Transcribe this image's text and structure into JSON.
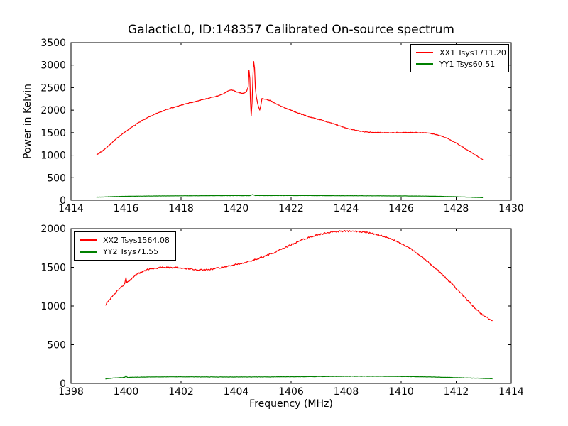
{
  "figure": {
    "title": "GalacticL0, ID:148357 Calibrated On-source spectrum",
    "background": "#ffffff",
    "axis_color": "#000000"
  },
  "chart_data": [
    {
      "type": "line",
      "xlabel": "",
      "ylabel": "Power in Kelvin",
      "xlim": [
        1414,
        1430
      ],
      "ylim": [
        0,
        3500
      ],
      "xticks": [
        1414,
        1416,
        1418,
        1420,
        1422,
        1424,
        1426,
        1428,
        1430
      ],
      "yticks": [
        0,
        500,
        1000,
        1500,
        2000,
        2500,
        3000,
        3500
      ],
      "grid": false,
      "legend_position": "upper right",
      "series": [
        {
          "id": "xx1",
          "name": "XX1 Tsys1711.20",
          "color": "#ff0000",
          "noise": 9,
          "points": [
            [
              1414.92,
              1000
            ],
            [
              1415.05,
              1055
            ],
            [
              1415.2,
              1120
            ],
            [
              1415.4,
              1230
            ],
            [
              1415.6,
              1340
            ],
            [
              1415.8,
              1440
            ],
            [
              1416.0,
              1530
            ],
            [
              1416.2,
              1620
            ],
            [
              1416.4,
              1700
            ],
            [
              1416.6,
              1775
            ],
            [
              1416.8,
              1840
            ],
            [
              1417.0,
              1900
            ],
            [
              1417.2,
              1950
            ],
            [
              1417.4,
              1995
            ],
            [
              1417.6,
              2040
            ],
            [
              1417.8,
              2075
            ],
            [
              1418.0,
              2110
            ],
            [
              1418.2,
              2145
            ],
            [
              1418.4,
              2175
            ],
            [
              1418.6,
              2205
            ],
            [
              1418.8,
              2235
            ],
            [
              1419.0,
              2265
            ],
            [
              1419.2,
              2295
            ],
            [
              1419.35,
              2320
            ],
            [
              1419.5,
              2350
            ],
            [
              1419.6,
              2385
            ],
            [
              1419.7,
              2425
            ],
            [
              1419.8,
              2445
            ],
            [
              1419.9,
              2440
            ],
            [
              1420.0,
              2410
            ],
            [
              1420.1,
              2390
            ],
            [
              1420.2,
              2375
            ],
            [
              1420.3,
              2380
            ],
            [
              1420.38,
              2410
            ],
            [
              1420.44,
              2520
            ],
            [
              1420.47,
              2890
            ],
            [
              1420.5,
              2700
            ],
            [
              1420.52,
              2250
            ],
            [
              1420.55,
              1870
            ],
            [
              1420.58,
              2150
            ],
            [
              1420.61,
              2700
            ],
            [
              1420.64,
              3080
            ],
            [
              1420.67,
              2950
            ],
            [
              1420.7,
              2500
            ],
            [
              1420.74,
              2280
            ],
            [
              1420.78,
              2160
            ],
            [
              1420.82,
              2070
            ],
            [
              1420.86,
              2000
            ],
            [
              1420.9,
              2110
            ],
            [
              1420.94,
              2260
            ],
            [
              1421.0,
              2250
            ],
            [
              1421.1,
              2240
            ],
            [
              1421.25,
              2210
            ],
            [
              1421.4,
              2160
            ],
            [
              1421.6,
              2100
            ],
            [
              1421.8,
              2045
            ],
            [
              1422.0,
              1995
            ],
            [
              1422.2,
              1950
            ],
            [
              1422.4,
              1905
            ],
            [
              1422.6,
              1865
            ],
            [
              1422.8,
              1830
            ],
            [
              1423.0,
              1795
            ],
            [
              1423.2,
              1760
            ],
            [
              1423.4,
              1725
            ],
            [
              1423.6,
              1685
            ],
            [
              1423.8,
              1645
            ],
            [
              1424.0,
              1605
            ],
            [
              1424.2,
              1570
            ],
            [
              1424.4,
              1545
            ],
            [
              1424.6,
              1525
            ],
            [
              1424.8,
              1512
            ],
            [
              1425.0,
              1505
            ],
            [
              1425.3,
              1500
            ],
            [
              1425.6,
              1498
            ],
            [
              1425.9,
              1500
            ],
            [
              1426.2,
              1503
            ],
            [
              1426.5,
              1505
            ],
            [
              1426.8,
              1500
            ],
            [
              1427.0,
              1490
            ],
            [
              1427.2,
              1470
            ],
            [
              1427.4,
              1435
            ],
            [
              1427.6,
              1390
            ],
            [
              1427.8,
              1335
            ],
            [
              1428.0,
              1270
            ],
            [
              1428.2,
              1195
            ],
            [
              1428.4,
              1120
            ],
            [
              1428.6,
              1040
            ],
            [
              1428.8,
              960
            ],
            [
              1428.97,
              895
            ]
          ]
        },
        {
          "id": "yy1",
          "name": "YY1 Tsys60.51",
          "color": "#008000",
          "noise": 2,
          "points": [
            [
              1414.92,
              68
            ],
            [
              1415.5,
              80
            ],
            [
              1416,
              87
            ],
            [
              1417,
              94
            ],
            [
              1418,
              98
            ],
            [
              1419,
              101
            ],
            [
              1420,
              103
            ],
            [
              1420.5,
              101
            ],
            [
              1420.6,
              125
            ],
            [
              1420.7,
              103
            ],
            [
              1421,
              104
            ],
            [
              1422,
              104
            ],
            [
              1423,
              102
            ],
            [
              1424,
              100
            ],
            [
              1425,
              98
            ],
            [
              1426,
              95
            ],
            [
              1426.8,
              92
            ],
            [
              1427.4,
              86
            ],
            [
              1428,
              78
            ],
            [
              1428.5,
              68
            ],
            [
              1428.97,
              57
            ]
          ]
        }
      ]
    },
    {
      "type": "line",
      "xlabel": "Frequency (MHz)",
      "ylabel": "",
      "xlim": [
        1398,
        1414
      ],
      "ylim": [
        0,
        2000
      ],
      "xticks": [
        1398,
        1400,
        1402,
        1404,
        1406,
        1408,
        1410,
        1412,
        1414
      ],
      "yticks": [
        0,
        500,
        1000,
        1500,
        2000
      ],
      "grid": false,
      "legend_position": "upper left",
      "series": [
        {
          "id": "xx2",
          "name": "XX2 Tsys1564.08",
          "color": "#ff0000",
          "noise": 10,
          "points": [
            [
              1399.25,
              1010
            ],
            [
              1399.4,
              1080
            ],
            [
              1399.55,
              1145
            ],
            [
              1399.7,
              1205
            ],
            [
              1399.85,
              1255
            ],
            [
              1399.95,
              1288
            ],
            [
              1400.0,
              1370
            ],
            [
              1400.03,
              1300
            ],
            [
              1400.15,
              1340
            ],
            [
              1400.3,
              1385
            ],
            [
              1400.45,
              1420
            ],
            [
              1400.6,
              1448
            ],
            [
              1400.75,
              1468
            ],
            [
              1400.9,
              1480
            ],
            [
              1401.1,
              1490
            ],
            [
              1401.3,
              1496
            ],
            [
              1401.5,
              1499
            ],
            [
              1401.7,
              1498
            ],
            [
              1401.9,
              1494
            ],
            [
              1402.1,
              1488
            ],
            [
              1402.3,
              1480
            ],
            [
              1402.5,
              1473
            ],
            [
              1402.7,
              1468
            ],
            [
              1402.9,
              1470
            ],
            [
              1403.1,
              1477
            ],
            [
              1403.3,
              1487
            ],
            [
              1403.5,
              1500
            ],
            [
              1403.7,
              1513
            ],
            [
              1403.9,
              1528
            ],
            [
              1404.1,
              1545
            ],
            [
              1404.3,
              1562
            ],
            [
              1404.5,
              1580
            ],
            [
              1404.7,
              1602
            ],
            [
              1404.9,
              1625
            ],
            [
              1405.1,
              1652
            ],
            [
              1405.3,
              1680
            ],
            [
              1405.5,
              1710
            ],
            [
              1405.7,
              1742
            ],
            [
              1405.9,
              1775
            ],
            [
              1406.1,
              1808
            ],
            [
              1406.3,
              1840
            ],
            [
              1406.5,
              1868
            ],
            [
              1406.7,
              1893
            ],
            [
              1406.9,
              1913
            ],
            [
              1407.1,
              1930
            ],
            [
              1407.3,
              1945
            ],
            [
              1407.5,
              1955
            ],
            [
              1407.7,
              1962
            ],
            [
              1407.9,
              1966
            ],
            [
              1408.1,
              1968
            ],
            [
              1408.3,
              1966
            ],
            [
              1408.5,
              1960
            ],
            [
              1408.7,
              1952
            ],
            [
              1408.9,
              1940
            ],
            [
              1409.1,
              1925
            ],
            [
              1409.3,
              1907
            ],
            [
              1409.5,
              1885
            ],
            [
              1409.7,
              1858
            ],
            [
              1409.9,
              1827
            ],
            [
              1410.1,
              1790
            ],
            [
              1410.3,
              1748
            ],
            [
              1410.5,
              1700
            ],
            [
              1410.7,
              1648
            ],
            [
              1410.9,
              1592
            ],
            [
              1411.1,
              1533
            ],
            [
              1411.3,
              1470
            ],
            [
              1411.5,
              1405
            ],
            [
              1411.7,
              1337
            ],
            [
              1411.9,
              1266
            ],
            [
              1412.1,
              1192
            ],
            [
              1412.3,
              1116
            ],
            [
              1412.5,
              1040
            ],
            [
              1412.7,
              965
            ],
            [
              1412.9,
              900
            ],
            [
              1413.1,
              855
            ],
            [
              1413.2,
              832
            ],
            [
              1413.32,
              815
            ]
          ]
        },
        {
          "id": "yy2",
          "name": "YY2 Tsys71.55",
          "color": "#008000",
          "noise": 2,
          "points": [
            [
              1399.25,
              58
            ],
            [
              1399.5,
              68
            ],
            [
              1399.75,
              74
            ],
            [
              1399.95,
              77
            ],
            [
              1400.0,
              103
            ],
            [
              1400.05,
              78
            ],
            [
              1400.3,
              80
            ],
            [
              1400.6,
              82
            ],
            [
              1401,
              84
            ],
            [
              1402,
              85
            ],
            [
              1403,
              84
            ],
            [
              1404,
              83
            ],
            [
              1405,
              84
            ],
            [
              1406,
              86
            ],
            [
              1407,
              89
            ],
            [
              1408,
              92
            ],
            [
              1408.5,
              93
            ],
            [
              1409,
              92
            ],
            [
              1409.5,
              91
            ],
            [
              1410,
              89
            ],
            [
              1410.5,
              87
            ],
            [
              1411,
              84
            ],
            [
              1411.5,
              80
            ],
            [
              1412,
              75
            ],
            [
              1412.5,
              70
            ],
            [
              1413,
              64
            ],
            [
              1413.32,
              61
            ]
          ]
        }
      ]
    }
  ]
}
